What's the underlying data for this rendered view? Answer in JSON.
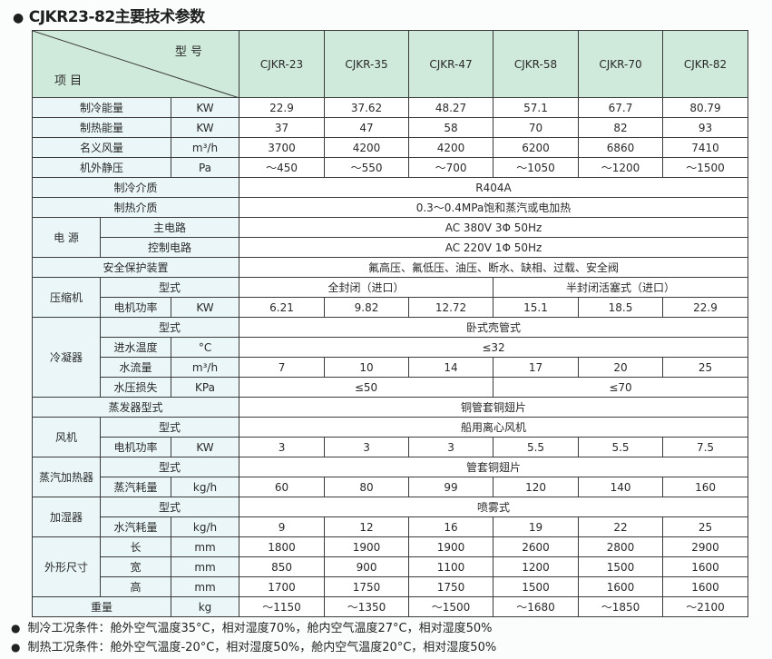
{
  "title": "CJKR23-82主要技术参数",
  "header": {
    "model_label": "型 号",
    "item_label": "项 目",
    "models": [
      "CJKR-23",
      "CJKR-35",
      "CJKR-47",
      "CJKR-58",
      "CJKR-70",
      "CJKR-82"
    ]
  },
  "rows": [
    {
      "group": "",
      "label": "制冷能量",
      "unit": "KW",
      "values": [
        "22.9",
        "37.62",
        "48.27",
        "57.1",
        "67.7",
        "80.79"
      ]
    },
    {
      "group": "",
      "label": "制热能量",
      "unit": "KW",
      "values": [
        "37",
        "47",
        "58",
        "70",
        "82",
        "93"
      ]
    },
    {
      "group": "",
      "label": "名义风量",
      "unit": "m³/h",
      "values": [
        "3700",
        "4200",
        "4200",
        "6200",
        "6860",
        "7410"
      ]
    },
    {
      "group": "",
      "label": "机外静压",
      "unit": "Pa",
      "values": [
        "～450",
        "～550",
        "～700",
        "～1050",
        "～1200",
        "～1500"
      ]
    },
    {
      "group": "",
      "label": "制冷介质",
      "unit": "",
      "values": [
        "R404A"
      ]
    },
    {
      "group": "",
      "label": "制热介质",
      "unit": "",
      "values": [
        "0.3～0.4MPa饱和蒸汽或电加热"
      ]
    },
    {
      "group": "电 源",
      "label": "主电路",
      "unit": "",
      "values": [
        "AC 380V 3Φ 50Hz"
      ]
    },
    {
      "group": "电 源",
      "label": "控制电路",
      "unit": "",
      "values": [
        "AC 220V 1Φ 50Hz"
      ]
    },
    {
      "group": "",
      "label": "安全保护装置",
      "unit": "",
      "values": [
        "氟高压、氟低压、油压、断水、缺相、过载、安全阀"
      ]
    },
    {
      "group": "压缩机",
      "label": "型式",
      "unit": "",
      "values": [
        "全封闭（进口）",
        "半封闭活塞式（进口）"
      ]
    },
    {
      "group": "压缩机",
      "label": "电机功率",
      "unit": "KW",
      "values": [
        "6.21",
        "9.82",
        "12.72",
        "15.1",
        "18.5",
        "22.9"
      ]
    },
    {
      "group": "冷凝器",
      "label": "型式",
      "unit": "",
      "values": [
        "卧式壳管式"
      ]
    },
    {
      "group": "冷凝器",
      "label": "进水温度",
      "unit": "°C",
      "values": [
        "≤32"
      ]
    },
    {
      "group": "冷凝器",
      "label": "水流量",
      "unit": "m³/h",
      "values": [
        "7",
        "10",
        "14",
        "17",
        "20",
        "25"
      ]
    },
    {
      "group": "冷凝器",
      "label": "水压损失",
      "unit": "KPa",
      "values": [
        "≤50",
        "≤70"
      ]
    },
    {
      "group": "",
      "label": "蒸发器型式",
      "unit": "",
      "values": [
        "铜管套铜翅片"
      ]
    },
    {
      "group": "风机",
      "label": "型式",
      "unit": "",
      "values": [
        "船用离心风机"
      ]
    },
    {
      "group": "风机",
      "label": "电机功率",
      "unit": "KW",
      "values": [
        "3",
        "3",
        "3",
        "5.5",
        "5.5",
        "7.5"
      ]
    },
    {
      "group": "蒸汽加热器",
      "label": "型式",
      "unit": "",
      "values": [
        "管套铜翅片"
      ]
    },
    {
      "group": "蒸汽加热器",
      "label": "蒸汽耗量",
      "unit": "kg/h",
      "values": [
        "60",
        "80",
        "99",
        "120",
        "140",
        "160"
      ]
    },
    {
      "group": "加湿器",
      "label": "型式",
      "unit": "",
      "values": [
        "喷雾式"
      ]
    },
    {
      "group": "加湿器",
      "label": "水汽耗量",
      "unit": "kg/h",
      "values": [
        "9",
        "12",
        "16",
        "19",
        "22",
        "25"
      ]
    },
    {
      "group": "外形尺寸",
      "label": "长",
      "unit": "mm",
      "values": [
        "1800",
        "1900",
        "1900",
        "2600",
        "2800",
        "2900"
      ]
    },
    {
      "group": "外形尺寸",
      "label": "宽",
      "unit": "mm",
      "values": [
        "850",
        "900",
        "1100",
        "1200",
        "1500",
        "1600"
      ]
    },
    {
      "group": "外形尺寸",
      "label": "高",
      "unit": "mm",
      "values": [
        "1700",
        "1750",
        "1750",
        "1500",
        "1600",
        "1600"
      ]
    },
    {
      "group": "",
      "label": "重量",
      "unit": "kg",
      "values": [
        "～1150",
        "～1350",
        "～1500",
        "～1680",
        "～1850",
        "～2100"
      ]
    }
  ],
  "notes": [
    "制冷工况条件：舱外空气温度35°C，相对湿度70%，舱内空气温度27°C，相对湿度50%",
    "制热工况条件：舱外空气温度-20°C，相对湿度50%，舱内空气温度20°C，相对湿度50%"
  ]
}
